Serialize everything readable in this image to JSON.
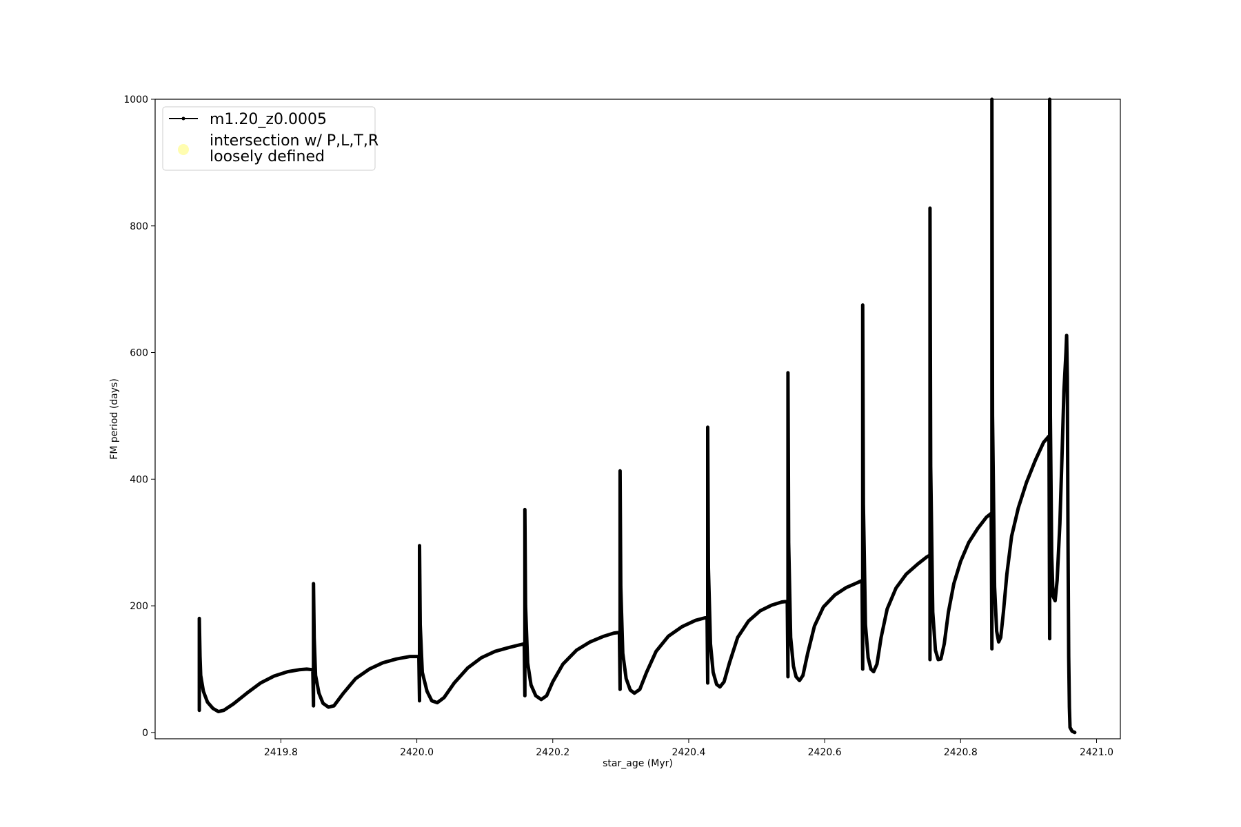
{
  "chart_data": {
    "type": "line",
    "xlabel": "star_age (Myr)",
    "ylabel": "FM period (days)",
    "xlim": [
      2419.615,
      2421.035
    ],
    "ylim": [
      -10,
      1000
    ],
    "xticks": [
      2419.8,
      2420.0,
      2420.2,
      2420.4,
      2420.6,
      2420.8,
      2421.0
    ],
    "xtick_labels": [
      "2419.8",
      "2420.0",
      "2420.2",
      "2420.4",
      "2420.6",
      "2420.8",
      "2421.0"
    ],
    "yticks": [
      0,
      200,
      400,
      600,
      800,
      1000
    ],
    "ytick_labels": [
      "0",
      "200",
      "400",
      "600",
      "800",
      "1000"
    ],
    "grid": false,
    "legend_position": "top-left",
    "series_color": "#000000",
    "intersection_color": "#fffdb0",
    "legend": [
      {
        "label": "m1.20_z0.0005",
        "marker": "line-dot"
      },
      {
        "label": "intersection w/ P,L,T,R",
        "label2": "loosely defined",
        "marker": "circle"
      }
    ],
    "series": [
      {
        "name": "m1.20_z0.0005",
        "points": [
          [
            2419.68,
            80
          ],
          [
            2419.68,
            35
          ],
          [
            2419.68,
            180
          ],
          [
            2419.681,
            120
          ],
          [
            2419.682,
            90
          ],
          [
            2419.686,
            65
          ],
          [
            2419.692,
            48
          ],
          [
            2419.7,
            38
          ],
          [
            2419.708,
            33
          ],
          [
            2419.716,
            35
          ],
          [
            2419.73,
            45
          ],
          [
            2419.75,
            62
          ],
          [
            2419.77,
            78
          ],
          [
            2419.79,
            89
          ],
          [
            2419.81,
            96
          ],
          [
            2419.827,
            99
          ],
          [
            2419.838,
            100
          ],
          [
            2419.847,
            99
          ],
          [
            2419.848,
            42
          ],
          [
            2419.848,
            235
          ],
          [
            2419.849,
            150
          ],
          [
            2419.851,
            90
          ],
          [
            2419.856,
            62
          ],
          [
            2419.862,
            46
          ],
          [
            2419.87,
            40
          ],
          [
            2419.878,
            42
          ],
          [
            2419.892,
            62
          ],
          [
            2419.91,
            85
          ],
          [
            2419.93,
            100
          ],
          [
            2419.95,
            110
          ],
          [
            2419.97,
            116
          ],
          [
            2419.99,
            120
          ],
          [
            2420.003,
            120
          ],
          [
            2420.004,
            50
          ],
          [
            2420.004,
            295
          ],
          [
            2420.005,
            170
          ],
          [
            2420.008,
            95
          ],
          [
            2420.015,
            65
          ],
          [
            2420.022,
            50
          ],
          [
            2420.03,
            47
          ],
          [
            2420.04,
            55
          ],
          [
            2420.055,
            78
          ],
          [
            2420.075,
            102
          ],
          [
            2420.095,
            118
          ],
          [
            2420.115,
            128
          ],
          [
            2420.135,
            134
          ],
          [
            2420.15,
            138
          ],
          [
            2420.158,
            140
          ],
          [
            2420.159,
            58
          ],
          [
            2420.159,
            352
          ],
          [
            2420.16,
            200
          ],
          [
            2420.163,
            110
          ],
          [
            2420.168,
            75
          ],
          [
            2420.175,
            58
          ],
          [
            2420.183,
            52
          ],
          [
            2420.191,
            58
          ],
          [
            2420.2,
            80
          ],
          [
            2420.215,
            108
          ],
          [
            2420.235,
            130
          ],
          [
            2420.255,
            143
          ],
          [
            2420.275,
            152
          ],
          [
            2420.29,
            157
          ],
          [
            2420.298,
            158
          ],
          [
            2420.299,
            68
          ],
          [
            2420.299,
            413
          ],
          [
            2420.3,
            230
          ],
          [
            2420.303,
            125
          ],
          [
            2420.308,
            85
          ],
          [
            2420.314,
            67
          ],
          [
            2420.32,
            62
          ],
          [
            2420.328,
            68
          ],
          [
            2420.338,
            95
          ],
          [
            2420.352,
            128
          ],
          [
            2420.37,
            152
          ],
          [
            2420.39,
            167
          ],
          [
            2420.41,
            177
          ],
          [
            2420.424,
            181
          ],
          [
            2420.427,
            182
          ],
          [
            2420.428,
            78
          ],
          [
            2420.428,
            482
          ],
          [
            2420.429,
            260
          ],
          [
            2420.432,
            140
          ],
          [
            2420.436,
            95
          ],
          [
            2420.441,
            76
          ],
          [
            2420.446,
            72
          ],
          [
            2420.452,
            80
          ],
          [
            2420.46,
            110
          ],
          [
            2420.472,
            150
          ],
          [
            2420.488,
            176
          ],
          [
            2420.505,
            192
          ],
          [
            2420.522,
            201
          ],
          [
            2420.537,
            206
          ],
          [
            2420.545,
            207
          ],
          [
            2420.546,
            88
          ],
          [
            2420.546,
            568
          ],
          [
            2420.547,
            300
          ],
          [
            2420.55,
            150
          ],
          [
            2420.554,
            105
          ],
          [
            2420.558,
            88
          ],
          [
            2420.563,
            82
          ],
          [
            2420.568,
            90
          ],
          [
            2420.575,
            125
          ],
          [
            2420.585,
            168
          ],
          [
            2420.598,
            198
          ],
          [
            2420.615,
            217
          ],
          [
            2420.632,
            229
          ],
          [
            2420.647,
            236
          ],
          [
            2420.655,
            240
          ],
          [
            2420.656,
            100
          ],
          [
            2420.656,
            675
          ],
          [
            2420.657,
            360
          ],
          [
            2420.66,
            170
          ],
          [
            2420.664,
            118
          ],
          [
            2420.668,
            100
          ],
          [
            2420.672,
            96
          ],
          [
            2420.677,
            108
          ],
          [
            2420.683,
            150
          ],
          [
            2420.692,
            195
          ],
          [
            2420.705,
            228
          ],
          [
            2420.72,
            250
          ],
          [
            2420.737,
            266
          ],
          [
            2420.75,
            277
          ],
          [
            2420.755,
            280
          ],
          [
            2420.755,
            115
          ],
          [
            2420.755,
            828
          ],
          [
            2420.756,
            420
          ],
          [
            2420.759,
            190
          ],
          [
            2420.763,
            130
          ],
          [
            2420.767,
            115
          ],
          [
            2420.771,
            116
          ],
          [
            2420.776,
            140
          ],
          [
            2420.782,
            190
          ],
          [
            2420.79,
            235
          ],
          [
            2420.8,
            270
          ],
          [
            2420.812,
            300
          ],
          [
            2420.825,
            322
          ],
          [
            2420.838,
            340
          ],
          [
            2420.845,
            346
          ],
          [
            2420.846,
            132
          ],
          [
            2420.846,
            1000
          ],
          [
            2420.847,
            500
          ],
          [
            2420.85,
            230
          ],
          [
            2420.853,
            160
          ],
          [
            2420.856,
            143
          ],
          [
            2420.859,
            150
          ],
          [
            2420.863,
            190
          ],
          [
            2420.868,
            250
          ],
          [
            2420.875,
            310
          ],
          [
            2420.885,
            355
          ],
          [
            2420.897,
            395
          ],
          [
            2420.91,
            430
          ],
          [
            2420.922,
            458
          ],
          [
            2420.93,
            468
          ],
          [
            2420.931,
            148
          ],
          [
            2420.931,
            1000
          ],
          [
            2420.932,
            500
          ],
          [
            2420.934,
            280
          ],
          [
            2420.936,
            215
          ],
          [
            2420.939,
            208
          ],
          [
            2420.942,
            240
          ],
          [
            2420.946,
            330
          ],
          [
            2420.949,
            430
          ],
          [
            2420.952,
            540
          ],
          [
            2420.955,
            600
          ],
          [
            2420.956,
            627
          ],
          [
            2420.957,
            560
          ],
          [
            2420.958,
            300
          ],
          [
            2420.959,
            120
          ],
          [
            2420.96,
            40
          ],
          [
            2420.961,
            8
          ],
          [
            2420.964,
            2
          ],
          [
            2420.968,
            0
          ]
        ]
      }
    ]
  }
}
